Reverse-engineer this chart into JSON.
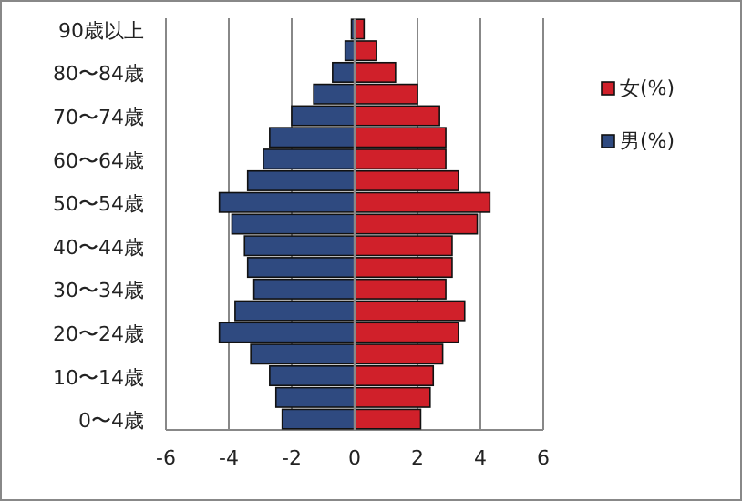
{
  "chart_data": {
    "type": "bar",
    "orientation": "horizontal",
    "stacked": true,
    "categories": [
      "90歳以上",
      null,
      "80〜84歳",
      null,
      "70〜74歳",
      null,
      "60〜64歳",
      null,
      "50〜54歳",
      null,
      "40〜44歳",
      null,
      "30〜34歳",
      null,
      "20〜24歳",
      null,
      "10〜14歳",
      null,
      "0〜4歳"
    ],
    "series": [
      {
        "name": "女(%)",
        "color": "#d0202a",
        "values": [
          0.3,
          0.7,
          1.3,
          2.0,
          2.7,
          2.9,
          2.9,
          3.3,
          4.3,
          3.9,
          3.1,
          3.1,
          2.9,
          3.5,
          3.3,
          2.8,
          2.5,
          2.4,
          2.1
        ]
      },
      {
        "name": "男(%)",
        "color": "#2f4a80",
        "values": [
          -0.1,
          -0.3,
          -0.7,
          -1.3,
          -2.0,
          -2.7,
          -2.9,
          -3.4,
          -4.3,
          -3.9,
          -3.5,
          -3.4,
          -3.2,
          -3.8,
          -4.3,
          -3.3,
          -2.7,
          -2.5,
          -2.3
        ]
      }
    ],
    "xlim": [
      -6,
      6
    ],
    "xticks": [
      -6,
      -4,
      -2,
      0,
      2,
      4,
      6
    ],
    "grid": "x",
    "legend": "right"
  }
}
